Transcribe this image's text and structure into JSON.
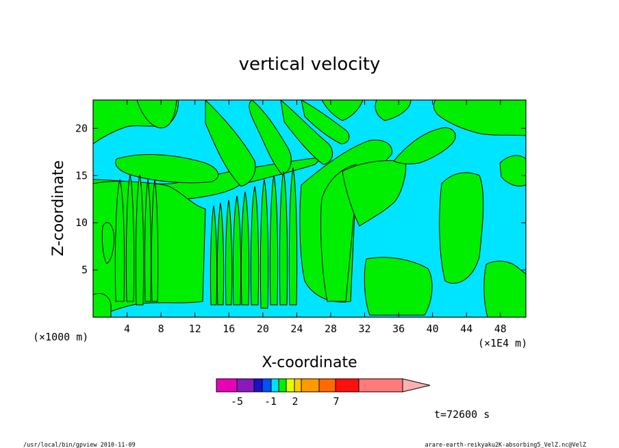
{
  "chart_data": {
    "type": "heatmap",
    "title": "vertical velocity",
    "xlabel": "X-coordinate",
    "ylabel": "Z-coordinate",
    "x_unit": "(×1E4 m)",
    "y_unit": "(×1000 m)",
    "xlim": [
      0,
      51
    ],
    "ylim": [
      0,
      23
    ],
    "x_ticks": [
      "4",
      "8",
      "12",
      "16",
      "20",
      "24",
      "28",
      "32",
      "36",
      "40",
      "44",
      "48"
    ],
    "y_ticks": [
      "5",
      "10",
      "15",
      "20"
    ],
    "grid": false,
    "colors": {
      "negative": "#00e5ff",
      "positive": "#00ee00",
      "contour": "#000000"
    },
    "colorbar": {
      "colors": [
        "#e800b8",
        "#8a1ac0",
        "#1a10c8",
        "#0050ff",
        "#00e0ff",
        "#00ee00",
        "#e8ff00",
        "#ffcc00",
        "#ff9900",
        "#ff6a00",
        "#ff1010",
        "#ff7a7a",
        "#ffb0b0"
      ],
      "labels": [
        "-5",
        "-1",
        "2",
        "7"
      ]
    },
    "time_label": "t=72600 s",
    "footer_left": "/usr/local/bin/gpview  2010-11-09",
    "footer_right": "arare-earth-reikyaku2K-absorbing5_VelZ.nc@VelZ"
  }
}
